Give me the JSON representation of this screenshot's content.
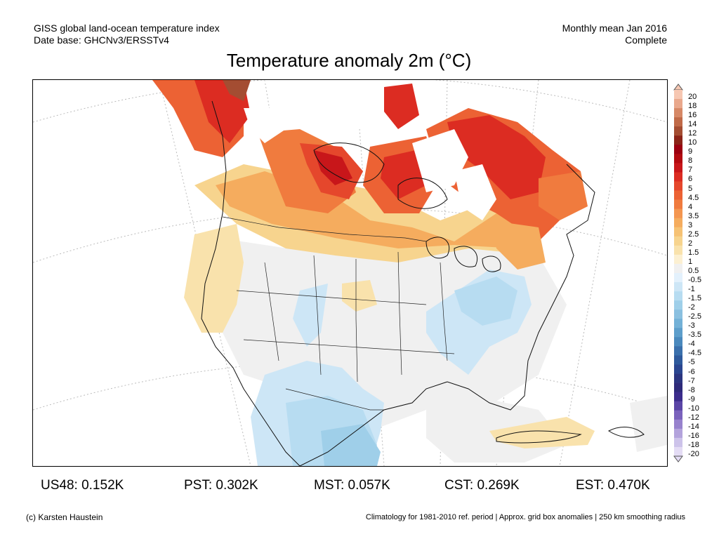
{
  "header": {
    "line1_left": "GISS global land-ocean temperature index",
    "line2_left": "Date base: GHCNv3/ERSSTv4",
    "line1_right": "Monthly mean Jan 2016",
    "line2_right": "Complete"
  },
  "title": "Temperature anomaly 2m (°C)",
  "colorbar": {
    "labels": [
      "20",
      "18",
      "16",
      "14",
      "12",
      "10",
      "9",
      "8",
      "7",
      "6",
      "5",
      "4.5",
      "4",
      "3.5",
      "3",
      "2.5",
      "2",
      "1.5",
      "1",
      "0.5",
      "-0.5",
      "-1",
      "-1.5",
      "-2",
      "-2.5",
      "-3",
      "-3.5",
      "-4",
      "-4.5",
      "-5",
      "-6",
      "-7",
      "-8",
      "-9",
      "-10",
      "-12",
      "-14",
      "-16",
      "-18",
      "-20"
    ],
    "colors": [
      "#f6c7b2",
      "#e9a88c",
      "#d68866",
      "#c06a48",
      "#a44d32",
      "#8b2418",
      "#9c0010",
      "#b30a10",
      "#c8161a",
      "#dc2c22",
      "#e5472c",
      "#ec6234",
      "#f07b3e",
      "#f49650",
      "#f5ac5e",
      "#f6c274",
      "#f7d48e",
      "#f9e2ac",
      "#fcf0d2",
      "#f0f0f0",
      "#e3f1fc",
      "#cde6f6",
      "#b7dcf1",
      "#9fcfe9",
      "#8ac0e0",
      "#73b1d7",
      "#5d9ecb",
      "#4a89bd",
      "#3a70ac",
      "#2e5a9c",
      "#2a4690",
      "#2b3580",
      "#2e2a7a",
      "#3b2c8c",
      "#5a45a6",
      "#7a62bc",
      "#9782cd",
      "#b3a3dc",
      "#cdc3ea",
      "#e4dcf5"
    ]
  },
  "stats": [
    {
      "name": "us48",
      "text": "US48: 0.152K"
    },
    {
      "name": "pst",
      "text": "PST: 0.302K"
    },
    {
      "name": "mst",
      "text": "MST: 0.057K"
    },
    {
      "name": "cst",
      "text": "CST: 0.269K"
    },
    {
      "name": "est",
      "text": "EST: 0.470K"
    }
  ],
  "footer": {
    "left": "(c) Karsten Haustein",
    "right": "Climatology for 1981-2010 ref. period | Approx. grid box anomalies | 250 km smoothing radius"
  }
}
